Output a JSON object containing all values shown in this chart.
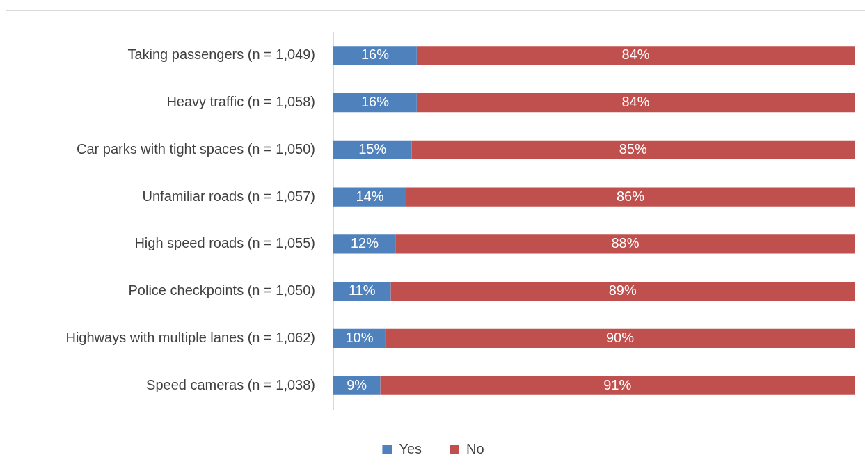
{
  "chart_data": {
    "type": "bar",
    "orientation": "horizontal",
    "stacked": true,
    "categories": [
      "Taking passengers (n = 1,049)",
      "Heavy traffic (n = 1,058)",
      "Car parks with tight spaces (n = 1,050)",
      "Unfamiliar roads (n = 1,057)",
      "High speed roads (n = 1,055)",
      "Police checkpoints (n = 1,050)",
      "Highways with multiple lanes (n = 1,062)",
      "Speed cameras (n = 1,038)"
    ],
    "series": [
      {
        "name": "Yes",
        "color": "#4f81bd",
        "values": [
          16,
          16,
          15,
          14,
          12,
          11,
          10,
          9
        ],
        "value_labels": [
          "16%",
          "16%",
          "15%",
          "14%",
          "12%",
          "11%",
          "10%",
          "9%"
        ]
      },
      {
        "name": "No",
        "color": "#c0504d",
        "values": [
          84,
          84,
          85,
          86,
          88,
          89,
          90,
          91
        ],
        "value_labels": [
          "84%",
          "84%",
          "85%",
          "86%",
          "88%",
          "89%",
          "90%",
          "91%"
        ]
      }
    ],
    "xlim": [
      0,
      100
    ],
    "grid": false,
    "legend": "bottom",
    "tick_labels": "y"
  }
}
